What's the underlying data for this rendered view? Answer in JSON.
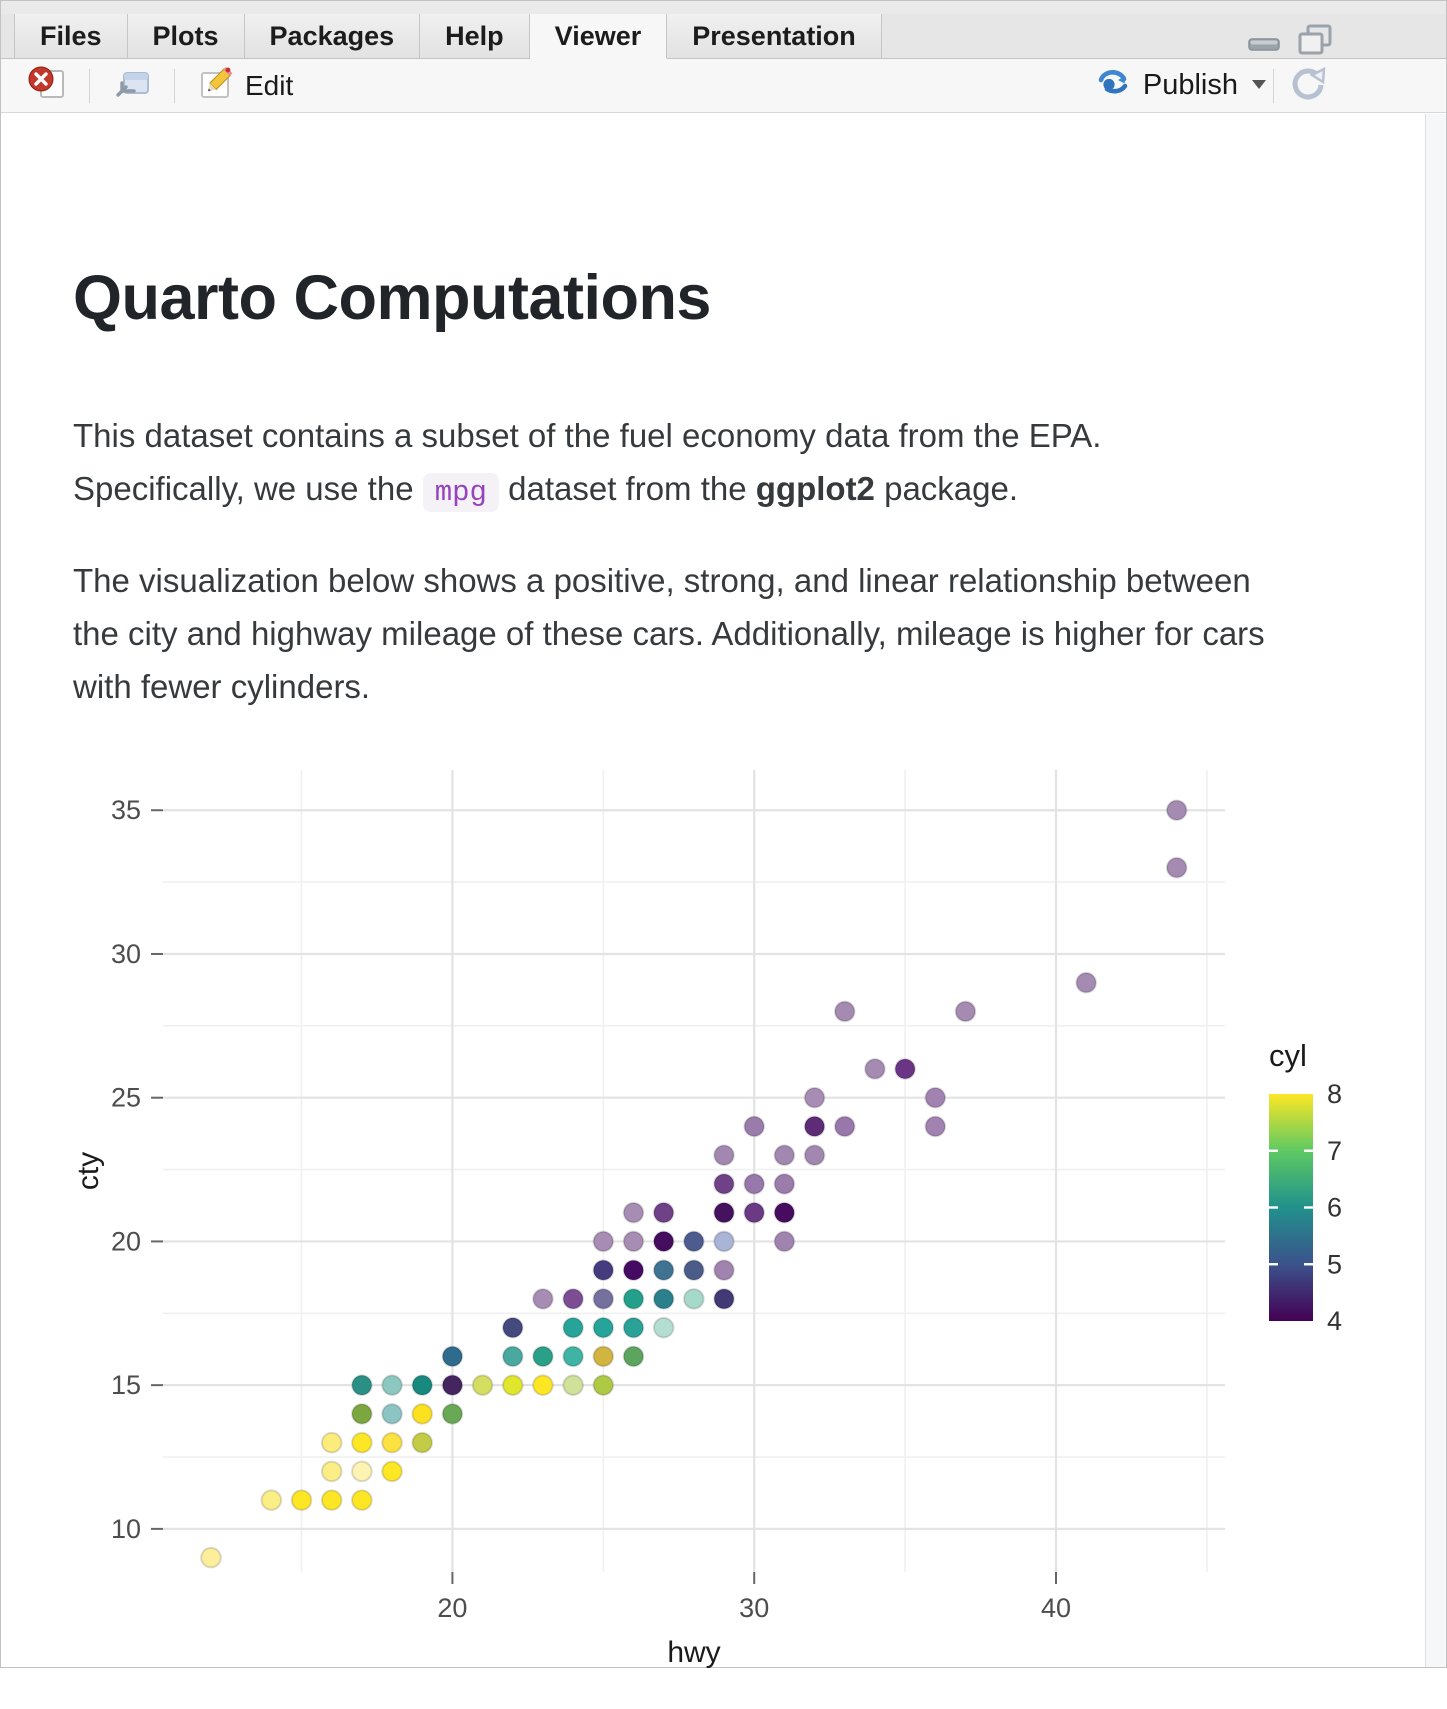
{
  "window": {
    "tabs": [
      {
        "label": "Files",
        "active": false
      },
      {
        "label": "Plots",
        "active": false
      },
      {
        "label": "Packages",
        "active": false
      },
      {
        "label": "Help",
        "active": false
      },
      {
        "label": "Viewer",
        "active": true
      },
      {
        "label": "Presentation",
        "active": false
      }
    ],
    "toolbar": {
      "edit_label": "Edit",
      "publish_label": "Publish"
    }
  },
  "doc": {
    "title": "Quarto Computations",
    "p1_a": "This dataset contains a subset of the fuel economy data from the EPA. Specifically, we use the ",
    "p1_code": "mpg",
    "p1_b": " dataset from the ",
    "p1_bold": "ggplot2",
    "p1_c": " package.",
    "p2": "The visualization below shows a positive, strong, and linear relationship between the city and highway mileage of these cars. Additionally, mileage is higher for cars with fewer cylinders."
  },
  "chart_data": {
    "type": "scatter",
    "xlabel": "hwy",
    "ylabel": "cty",
    "xlim": [
      10.41,
      45.6
    ],
    "ylim": [
      8.5,
      36.4
    ],
    "x_major_ticks": [
      20,
      30,
      40
    ],
    "x_minor_ticks": [
      15,
      25,
      35,
      45
    ],
    "y_major_ticks": [
      10,
      15,
      20,
      25,
      30,
      35
    ],
    "y_minor_ticks": [
      12.5,
      17.5,
      22.5,
      27.5,
      32.5
    ],
    "grid": true,
    "legend": {
      "title": "cyl",
      "position": "right",
      "tick_labels": [
        8,
        7,
        6,
        5,
        4
      ],
      "bar_tick_values": [
        7,
        6,
        5
      ],
      "range": [
        4,
        8
      ],
      "gradient_top_to_bottom": [
        "#fde725",
        "#5ec962",
        "#21918c",
        "#3b528b",
        "#440154"
      ]
    },
    "points": [
      {
        "hwy": 44,
        "cty": 35,
        "color": "#a58ab2"
      },
      {
        "hwy": 44,
        "cty": 33,
        "color": "#a58ab2"
      },
      {
        "hwy": 41,
        "cty": 29,
        "color": "#a58ab2"
      },
      {
        "hwy": 33,
        "cty": 28,
        "color": "#a58ab2"
      },
      {
        "hwy": 37,
        "cty": 28,
        "color": "#a58ab2"
      },
      {
        "hwy": 34,
        "cty": 26,
        "color": "#a58ab2"
      },
      {
        "hwy": 35,
        "cty": 26,
        "color": "#6b3585"
      },
      {
        "hwy": 32,
        "cty": 25,
        "color": "#a78cb3"
      },
      {
        "hwy": 36,
        "cty": 25,
        "color": "#a182b0"
      },
      {
        "hwy": 30,
        "cty": 24,
        "color": "#9a7cab"
      },
      {
        "hwy": 32,
        "cty": 24,
        "color": "#5e2c77"
      },
      {
        "hwy": 33,
        "cty": 24,
        "color": "#9878aa"
      },
      {
        "hwy": 36,
        "cty": 24,
        "color": "#a182b0"
      },
      {
        "hwy": 29,
        "cty": 23,
        "color": "#a288b1"
      },
      {
        "hwy": 31,
        "cty": 23,
        "color": "#a288b1"
      },
      {
        "hwy": 32,
        "cty": 23,
        "color": "#a288b1"
      },
      {
        "hwy": 29,
        "cty": 22,
        "color": "#6f4187"
      },
      {
        "hwy": 30,
        "cty": 22,
        "color": "#9878aa"
      },
      {
        "hwy": 31,
        "cty": 22,
        "color": "#9b7cab"
      },
      {
        "hwy": 26,
        "cty": 21,
        "color": "#a78cb3"
      },
      {
        "hwy": 27,
        "cty": 21,
        "color": "#6f4187"
      },
      {
        "hwy": 29,
        "cty": 21,
        "color": "#45125e"
      },
      {
        "hwy": 30,
        "cty": 21,
        "color": "#6a3a84"
      },
      {
        "hwy": 31,
        "cty": 21,
        "color": "#470c5f"
      },
      {
        "hwy": 25,
        "cty": 20,
        "color": "#a78cb3"
      },
      {
        "hwy": 26,
        "cty": 20,
        "color": "#a78cb3"
      },
      {
        "hwy": 27,
        "cty": 20,
        "color": "#440d5e"
      },
      {
        "hwy": 28,
        "cty": 20,
        "color": "#4d5c8f"
      },
      {
        "hwy": 29,
        "cty": 20,
        "color": "#a9b4d6"
      },
      {
        "hwy": 31,
        "cty": 20,
        "color": "#a183af"
      },
      {
        "hwy": 25,
        "cty": 19,
        "color": "#453c80"
      },
      {
        "hwy": 26,
        "cty": 19,
        "color": "#450b63"
      },
      {
        "hwy": 27,
        "cty": 19,
        "color": "#3f7391"
      },
      {
        "hwy": 28,
        "cty": 19,
        "color": "#4c5c88"
      },
      {
        "hwy": 29,
        "cty": 19,
        "color": "#a183af"
      },
      {
        "hwy": 23,
        "cty": 18,
        "color": "#a78cb3"
      },
      {
        "hwy": 24,
        "cty": 18,
        "color": "#7c4d92"
      },
      {
        "hwy": 25,
        "cty": 18,
        "color": "#75719f"
      },
      {
        "hwy": 26,
        "cty": 18,
        "color": "#23a089"
      },
      {
        "hwy": 27,
        "cty": 18,
        "color": "#2b808c"
      },
      {
        "hwy": 28,
        "cty": 18,
        "color": "#a7d9cb"
      },
      {
        "hwy": 29,
        "cty": 18,
        "color": "#413a75"
      },
      {
        "hwy": 22,
        "cty": 17,
        "color": "#44497e"
      },
      {
        "hwy": 24,
        "cty": 17,
        "color": "#27a49a"
      },
      {
        "hwy": 25,
        "cty": 17,
        "color": "#27a49a"
      },
      {
        "hwy": 26,
        "cty": 17,
        "color": "#2aa298"
      },
      {
        "hwy": 27,
        "cty": 17,
        "color": "#b5ded3"
      },
      {
        "hwy": 20,
        "cty": 16,
        "color": "#2f6b8c"
      },
      {
        "hwy": 22,
        "cty": 16,
        "color": "#49a8a0"
      },
      {
        "hwy": 23,
        "cty": 16,
        "color": "#2ba088"
      },
      {
        "hwy": 24,
        "cty": 16,
        "color": "#3fb3a4"
      },
      {
        "hwy": 25,
        "cty": 16,
        "color": "#d2b440"
      },
      {
        "hwy": 26,
        "cty": 16,
        "color": "#5ba55f"
      },
      {
        "hwy": 17,
        "cty": 15,
        "color": "#2a9085"
      },
      {
        "hwy": 18,
        "cty": 15,
        "color": "#8cc8c0"
      },
      {
        "hwy": 19,
        "cty": 15,
        "color": "#18897f"
      },
      {
        "hwy": 20,
        "cty": 15,
        "color": "#44255f"
      },
      {
        "hwy": 21,
        "cty": 15,
        "color": "#d4de61"
      },
      {
        "hwy": 22,
        "cty": 15,
        "color": "#e0e52e"
      },
      {
        "hwy": 23,
        "cty": 15,
        "color": "#fde725"
      },
      {
        "hwy": 24,
        "cty": 15,
        "color": "#cfe29a"
      },
      {
        "hwy": 25,
        "cty": 15,
        "color": "#aec944"
      },
      {
        "hwy": 17,
        "cty": 14,
        "color": "#7ca63f"
      },
      {
        "hwy": 18,
        "cty": 14,
        "color": "#8cc4c4"
      },
      {
        "hwy": 19,
        "cty": 14,
        "color": "#fbe11e"
      },
      {
        "hwy": 20,
        "cty": 14,
        "color": "#69a854"
      },
      {
        "hwy": 16,
        "cty": 13,
        "color": "#fcec7c"
      },
      {
        "hwy": 17,
        "cty": 13,
        "color": "#fde725"
      },
      {
        "hwy": 18,
        "cty": 13,
        "color": "#fbe240"
      },
      {
        "hwy": 19,
        "cty": 13,
        "color": "#c3cc45"
      },
      {
        "hwy": 16,
        "cty": 12,
        "color": "#fcee86"
      },
      {
        "hwy": 17,
        "cty": 12,
        "color": "#fdf3b3"
      },
      {
        "hwy": 18,
        "cty": 12,
        "color": "#fde725"
      },
      {
        "hwy": 14,
        "cty": 11,
        "color": "#fcee86"
      },
      {
        "hwy": 15,
        "cty": 11,
        "color": "#fde725"
      },
      {
        "hwy": 16,
        "cty": 11,
        "color": "#fde725"
      },
      {
        "hwy": 17,
        "cty": 11,
        "color": "#fde725"
      },
      {
        "hwy": 12,
        "cty": 9,
        "color": "#fcee9b"
      }
    ]
  }
}
